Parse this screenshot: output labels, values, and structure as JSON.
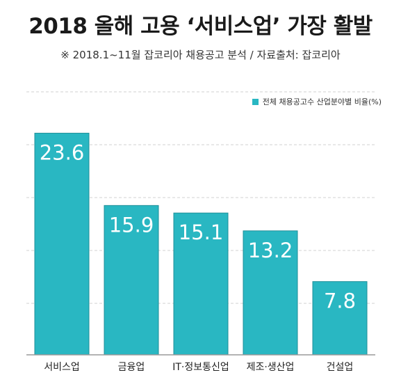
{
  "title": "2018 올해 고용 ‘서비스업’ 가장 활발",
  "subtitle": "※ 2018.1~11월 잡코리아 채용공고 분석 / 자료출처: 잡코리아",
  "legend": {
    "label": "전체 채용공고수 산업분야별 비율(%)"
  },
  "colors": {
    "bar": "#29b7c2",
    "bar_stroke": "#1f8f98",
    "grid": "#d9d9d9",
    "baseline": "#9a9a9a"
  },
  "chart_data": {
    "type": "bar",
    "categories": [
      "서비스업",
      "금융업",
      "IT·정보통신업",
      "제조·생산업",
      "건설업"
    ],
    "series": [
      {
        "name": "전체 채용공고수 산업분야별 비율(%)",
        "values": [
          23.6,
          15.9,
          15.1,
          13.2,
          7.8
        ]
      }
    ],
    "value_labels": [
      "23.6",
      "15.9",
      "15.1",
      "13.2",
      "7.8"
    ],
    "ylim": [
      0,
      28
    ],
    "grid": true,
    "legend_position": "top-right"
  }
}
